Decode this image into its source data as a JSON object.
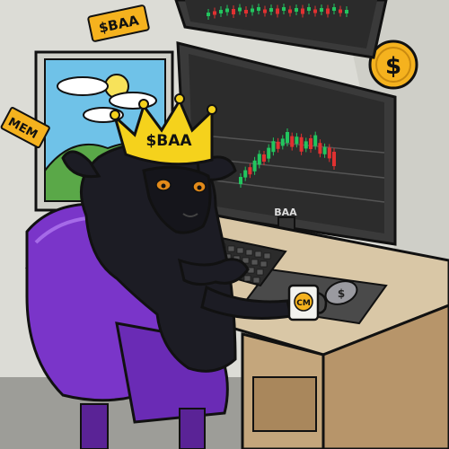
{
  "stickers": {
    "top_text": "$BAA",
    "left_text": "MEM",
    "coin_symbol": "$"
  },
  "crown": {
    "text": "$BAA"
  },
  "monitor": {
    "brand": "BAA"
  },
  "mug": {
    "text": "CM"
  },
  "mouse": {
    "symbol": "$"
  },
  "colors": {
    "wall": "#dcdcd6",
    "window_sky": "#6fc2e8",
    "hill": "#5aa848",
    "screen": "#2e2e2e",
    "candle_up": "#22c55e",
    "candle_down": "#e03131",
    "crown": "#f5d21c",
    "sheep_wool": "#1c1c24",
    "chair": "#7a35c9",
    "desk_top": "#d9c7a6",
    "desk_side": "#b7956a",
    "coin": "#f5b21e"
  }
}
